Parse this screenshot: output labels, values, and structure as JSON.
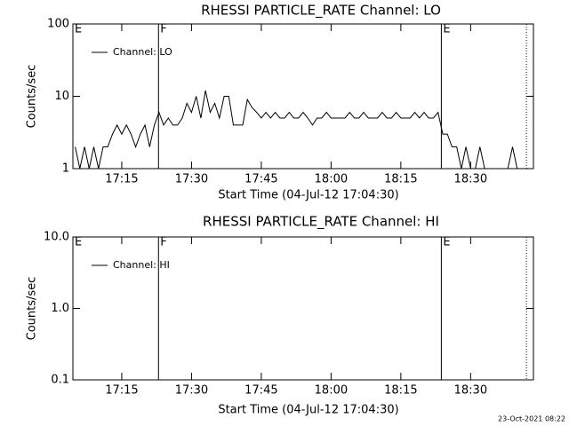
{
  "chart_data": [
    {
      "type": "line",
      "title": "RHESSI PARTICLE_RATE Channel: LO",
      "xlabel": "Start Time (04-Jul-12 17:04:30)",
      "ylabel": "Counts/sec",
      "log_y": true,
      "ylim": [
        1,
        100
      ],
      "yticks": [
        1,
        10,
        100
      ],
      "xlim": [
        1024.5,
        1123.5
      ],
      "xticks": [
        {
          "value": 1035,
          "label": "17:15"
        },
        {
          "value": 1050,
          "label": "17:30"
        },
        {
          "value": 1065,
          "label": "17:45"
        },
        {
          "value": 1080,
          "label": "18:00"
        },
        {
          "value": 1095,
          "label": "18:15"
        },
        {
          "value": 1110,
          "label": "18:30"
        }
      ],
      "legend": "upper left",
      "events": [
        {
          "x": 1024.5,
          "label": "E",
          "line_style": "solid"
        },
        {
          "x": 1042.9,
          "label": "F",
          "line_style": "solid"
        },
        {
          "x": 1103.7,
          "label": "E",
          "line_style": "solid"
        },
        {
          "x": 1122,
          "label": null,
          "line_style": "dotted"
        }
      ],
      "series": [
        {
          "name": "Channel: LO",
          "color": "#000000",
          "x": [
            1025,
            1026,
            1027,
            1028,
            1029,
            1030,
            1031,
            1032,
            1033,
            1034,
            1035,
            1036,
            1037,
            1038,
            1039,
            1040,
            1041,
            1042,
            1043,
            1044,
            1045,
            1046,
            1047,
            1048,
            1049,
            1050,
            1051,
            1052,
            1053,
            1054,
            1055,
            1056,
            1057,
            1058,
            1059,
            1060,
            1061,
            1062,
            1063,
            1064,
            1065,
            1066,
            1067,
            1068,
            1069,
            1070,
            1071,
            1072,
            1073,
            1074,
            1075,
            1076,
            1077,
            1078,
            1079,
            1080,
            1081,
            1082,
            1083,
            1084,
            1085,
            1086,
            1087,
            1088,
            1089,
            1090,
            1091,
            1092,
            1093,
            1094,
            1095,
            1096,
            1097,
            1098,
            1099,
            1100,
            1101,
            1102,
            1103,
            1104,
            1105,
            1106,
            1107,
            1108,
            1109,
            1110,
            1111,
            1112,
            1113,
            1114,
            1115,
            1116,
            1117,
            1118,
            1119,
            1120
          ],
          "values": [
            2,
            1,
            2,
            1,
            2,
            1,
            2,
            2,
            3,
            4,
            3,
            4,
            3,
            2,
            3,
            4,
            2,
            4,
            6,
            4,
            5,
            4,
            4,
            5,
            8,
            6,
            10,
            5,
            12,
            6,
            8,
            5,
            10,
            10,
            4,
            4,
            4,
            9,
            7,
            6,
            5,
            6,
            5,
            6,
            5,
            5,
            6,
            5,
            5,
            6,
            5,
            4,
            5,
            5,
            6,
            5,
            5,
            5,
            5,
            6,
            5,
            5,
            6,
            5,
            5,
            5,
            6,
            5,
            5,
            6,
            5,
            5,
            5,
            6,
            5,
            6,
            5,
            5,
            6,
            3,
            3,
            2,
            2,
            1,
            2,
            1,
            1,
            2,
            1,
            1,
            1,
            1,
            1,
            1,
            2,
            1
          ]
        }
      ]
    },
    {
      "type": "line",
      "title": "RHESSI PARTICLE_RATE Channel: HI",
      "xlabel": "Start Time (04-Jul-12 17:04:30)",
      "ylabel": "Counts/sec",
      "log_y": true,
      "ylim": [
        0.1,
        10
      ],
      "yticks": [
        0.1,
        {
          "value": 1,
          "label": "1.0"
        },
        {
          "value": 10,
          "label": "10.0"
        }
      ],
      "xlim": [
        1024.5,
        1123.5
      ],
      "xticks": [
        {
          "value": 1035,
          "label": "17:15"
        },
        {
          "value": 1050,
          "label": "17:30"
        },
        {
          "value": 1065,
          "label": "17:45"
        },
        {
          "value": 1080,
          "label": "18:00"
        },
        {
          "value": 1095,
          "label": "18:15"
        },
        {
          "value": 1110,
          "label": "18:30"
        }
      ],
      "legend": "upper left",
      "events": [
        {
          "x": 1024.5,
          "label": "E",
          "line_style": "solid"
        },
        {
          "x": 1042.9,
          "label": "F",
          "line_style": "solid"
        },
        {
          "x": 1103.7,
          "label": "E",
          "line_style": "solid"
        },
        {
          "x": 1122,
          "label": null,
          "line_style": "dotted"
        }
      ],
      "series": [
        {
          "name": "Channel: HI",
          "color": "#000000",
          "x": [],
          "values": []
        }
      ]
    }
  ],
  "footer": "23-Oct-2021 08:22"
}
